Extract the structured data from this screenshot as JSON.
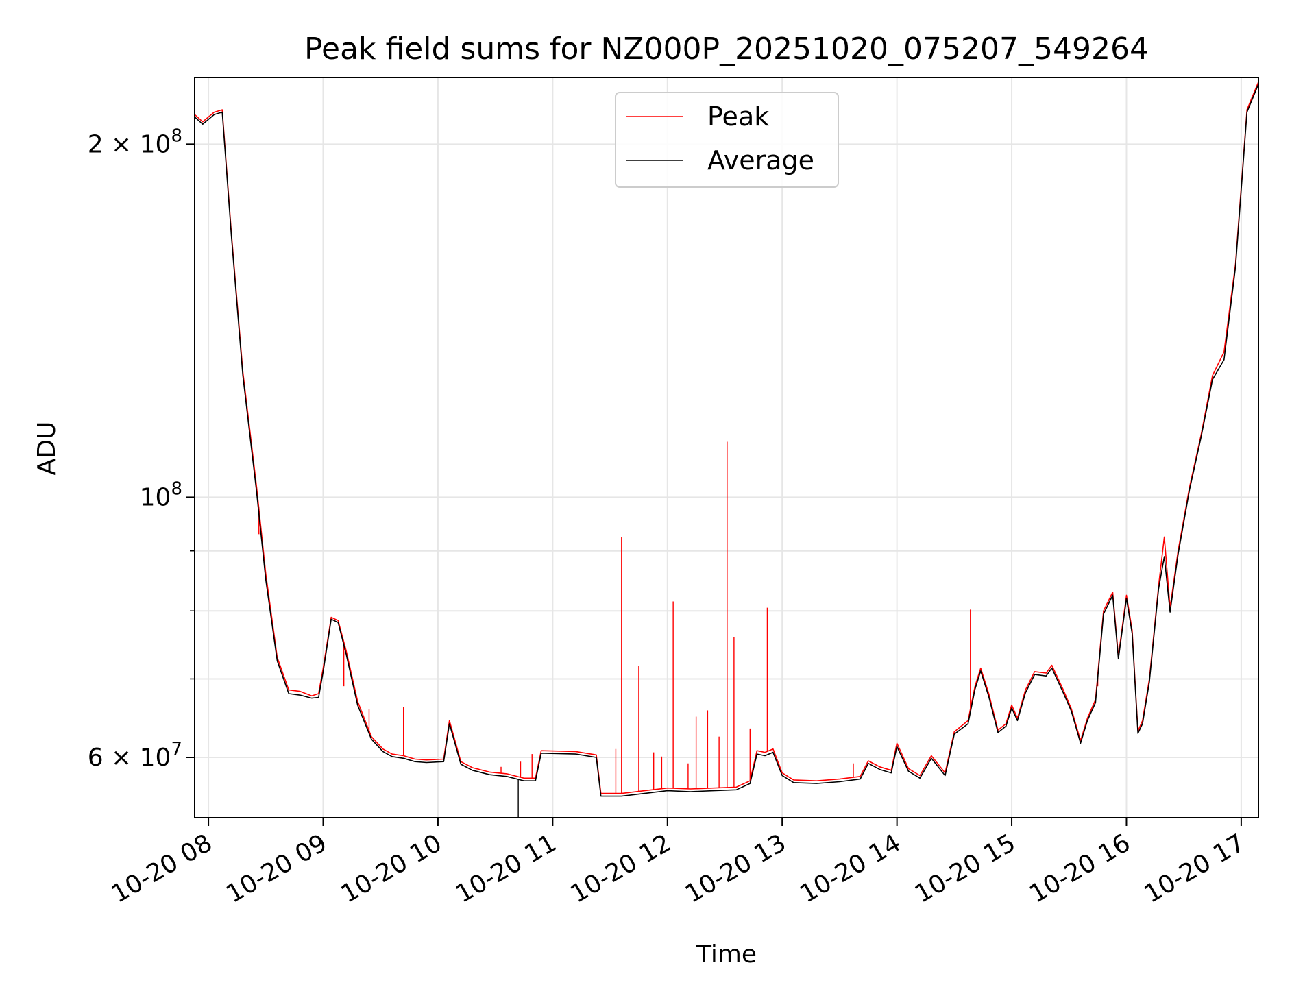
{
  "chart_data": {
    "type": "line",
    "title": "Peak field sums for NZ000P_20251020_075207_549264",
    "xlabel": "Time",
    "ylabel": "ADU",
    "yscale": "log",
    "ylim": [
      53300000,
      228000000
    ],
    "xlim_hours": [
      7.88,
      17.15
    ],
    "grid": true,
    "legend_position": "top-center",
    "x_ticks": [
      {
        "value": 8,
        "label": "10-20 08"
      },
      {
        "value": 9,
        "label": "10-20 09"
      },
      {
        "value": 10,
        "label": "10-20 10"
      },
      {
        "value": 11,
        "label": "10-20 11"
      },
      {
        "value": 12,
        "label": "10-20 12"
      },
      {
        "value": 13,
        "label": "10-20 13"
      },
      {
        "value": 14,
        "label": "10-20 14"
      },
      {
        "value": 15,
        "label": "10-20 15"
      },
      {
        "value": 16,
        "label": "10-20 16"
      },
      {
        "value": 17,
        "label": "10-20 17"
      }
    ],
    "y_ticks": [
      {
        "value": 200000000,
        "mantissa": "2",
        "exponent": "8"
      },
      {
        "value": 100000000,
        "mantissa": "",
        "exponent": "8"
      },
      {
        "value": 60000000,
        "mantissa": "6",
        "exponent": "7"
      }
    ],
    "y_minor_ticks": [
      70000000,
      80000000,
      90000000
    ],
    "series": [
      {
        "name": "Peak",
        "color": "#ff0000",
        "points": [
          [
            7.88,
            212000000
          ],
          [
            7.95,
            209000000
          ],
          [
            8.05,
            213000000
          ],
          [
            8.12,
            214000000
          ],
          [
            8.2,
            168000000
          ],
          [
            8.3,
            128000000
          ],
          [
            8.42,
            102000000
          ],
          [
            8.5,
            86000000
          ],
          [
            8.6,
            73000000
          ],
          [
            8.7,
            68500000
          ],
          [
            8.8,
            68300000
          ],
          [
            8.9,
            67700000
          ],
          [
            8.96,
            68000000
          ],
          [
            9.0,
            71500000
          ],
          [
            9.07,
            79000000
          ],
          [
            9.13,
            78500000
          ],
          [
            9.2,
            74000000
          ],
          [
            9.3,
            67000000
          ],
          [
            9.42,
            62500000
          ],
          [
            9.52,
            61000000
          ],
          [
            9.6,
            60400000
          ],
          [
            9.7,
            60200000
          ],
          [
            9.8,
            59800000
          ],
          [
            9.9,
            59700000
          ],
          [
            10.05,
            59800000
          ],
          [
            10.1,
            64500000
          ],
          [
            10.2,
            59500000
          ],
          [
            10.3,
            58800000
          ],
          [
            10.45,
            58300000
          ],
          [
            10.6,
            58100000
          ],
          [
            10.75,
            57600000
          ],
          [
            10.85,
            57600000
          ],
          [
            10.9,
            60800000
          ],
          [
            11.2,
            60700000
          ],
          [
            11.38,
            60300000
          ],
          [
            11.42,
            55900000
          ],
          [
            11.6,
            55900000
          ],
          [
            11.8,
            56200000
          ],
          [
            12.0,
            56500000
          ],
          [
            12.2,
            56400000
          ],
          [
            12.4,
            56500000
          ],
          [
            12.6,
            56600000
          ],
          [
            12.72,
            57300000
          ],
          [
            12.78,
            60800000
          ],
          [
            12.85,
            60600000
          ],
          [
            12.92,
            61000000
          ],
          [
            13.0,
            58200000
          ],
          [
            13.1,
            57400000
          ],
          [
            13.3,
            57300000
          ],
          [
            13.5,
            57500000
          ],
          [
            13.68,
            57800000
          ],
          [
            13.75,
            59600000
          ],
          [
            13.85,
            58900000
          ],
          [
            13.95,
            58500000
          ],
          [
            14.0,
            61700000
          ],
          [
            14.1,
            58700000
          ],
          [
            14.2,
            57900000
          ],
          [
            14.3,
            60200000
          ],
          [
            14.42,
            58200000
          ],
          [
            14.5,
            63100000
          ],
          [
            14.62,
            64500000
          ],
          [
            14.68,
            69000000
          ],
          [
            14.73,
            71500000
          ],
          [
            14.8,
            68000000
          ],
          [
            14.88,
            63300000
          ],
          [
            14.95,
            64100000
          ],
          [
            15.0,
            66500000
          ],
          [
            15.05,
            64800000
          ],
          [
            15.12,
            68500000
          ],
          [
            15.2,
            71000000
          ],
          [
            15.3,
            70800000
          ],
          [
            15.35,
            71900000
          ],
          [
            15.45,
            68500000
          ],
          [
            15.52,
            66000000
          ],
          [
            15.6,
            62000000
          ],
          [
            15.66,
            64800000
          ],
          [
            15.73,
            67200000
          ],
          [
            15.8,
            80000000
          ],
          [
            15.88,
            83000000
          ],
          [
            15.93,
            73200000
          ],
          [
            16.0,
            82500000
          ],
          [
            16.05,
            77000000
          ],
          [
            16.1,
            63200000
          ],
          [
            16.14,
            64500000
          ],
          [
            16.2,
            70000000
          ],
          [
            16.28,
            84000000
          ],
          [
            16.33,
            92500000
          ],
          [
            16.38,
            80500000
          ],
          [
            16.45,
            90000000
          ],
          [
            16.55,
            102000000
          ],
          [
            16.65,
            113000000
          ],
          [
            16.75,
            127000000
          ],
          [
            16.85,
            133000000
          ],
          [
            16.95,
            158000000
          ],
          [
            17.05,
            214000000
          ],
          [
            17.15,
            226000000
          ]
        ],
        "spikes": [
          [
            8.44,
            93000000
          ],
          [
            9.18,
            69000000
          ],
          [
            9.4,
            66000000
          ],
          [
            9.7,
            66200000
          ],
          [
            10.35,
            58800000
          ],
          [
            10.55,
            58900000
          ],
          [
            10.72,
            59500000
          ],
          [
            10.82,
            60400000
          ],
          [
            11.55,
            61000000
          ],
          [
            11.6,
            92500000
          ],
          [
            11.75,
            71800000
          ],
          [
            11.88,
            60600000
          ],
          [
            11.95,
            60100000
          ],
          [
            12.05,
            81500000
          ],
          [
            12.18,
            59300000
          ],
          [
            12.25,
            65000000
          ],
          [
            12.35,
            65800000
          ],
          [
            12.45,
            62500000
          ],
          [
            12.52,
            111500000
          ],
          [
            12.58,
            76000000
          ],
          [
            12.72,
            63500000
          ],
          [
            12.87,
            80500000
          ],
          [
            13.62,
            59300000
          ],
          [
            14.64,
            80200000
          ],
          [
            15.75,
            69000000
          ]
        ]
      },
      {
        "name": "Average",
        "color": "#000000",
        "points": [
          [
            7.88,
            211000000
          ],
          [
            7.95,
            208000000
          ],
          [
            8.05,
            212000000
          ],
          [
            8.12,
            213000000
          ],
          [
            8.2,
            167000000
          ],
          [
            8.3,
            127000000
          ],
          [
            8.42,
            101000000
          ],
          [
            8.5,
            85000000
          ],
          [
            8.6,
            72500000
          ],
          [
            8.7,
            68000000
          ],
          [
            8.8,
            67800000
          ],
          [
            8.9,
            67400000
          ],
          [
            8.96,
            67500000
          ],
          [
            9.0,
            71000000
          ],
          [
            9.07,
            78700000
          ],
          [
            9.13,
            78200000
          ],
          [
            9.2,
            73500000
          ],
          [
            9.3,
            66500000
          ],
          [
            9.42,
            62200000
          ],
          [
            9.52,
            60700000
          ],
          [
            9.6,
            60100000
          ],
          [
            9.7,
            59900000
          ],
          [
            9.8,
            59500000
          ],
          [
            9.9,
            59400000
          ],
          [
            10.05,
            59500000
          ],
          [
            10.1,
            64100000
          ],
          [
            10.2,
            59200000
          ],
          [
            10.3,
            58500000
          ],
          [
            10.45,
            58000000
          ],
          [
            10.6,
            57800000
          ],
          [
            10.75,
            57300000
          ],
          [
            10.85,
            57300000
          ],
          [
            10.9,
            60500000
          ],
          [
            11.2,
            60400000
          ],
          [
            11.38,
            60000000
          ],
          [
            11.42,
            55600000
          ],
          [
            11.6,
            55600000
          ],
          [
            11.8,
            55900000
          ],
          [
            12.0,
            56200000
          ],
          [
            12.2,
            56100000
          ],
          [
            12.4,
            56200000
          ],
          [
            12.6,
            56300000
          ],
          [
            12.72,
            57000000
          ],
          [
            12.78,
            60400000
          ],
          [
            12.85,
            60200000
          ],
          [
            12.92,
            60600000
          ],
          [
            13.0,
            57900000
          ],
          [
            13.1,
            57100000
          ],
          [
            13.3,
            57000000
          ],
          [
            13.5,
            57200000
          ],
          [
            13.68,
            57500000
          ],
          [
            13.75,
            59300000
          ],
          [
            13.85,
            58600000
          ],
          [
            13.95,
            58200000
          ],
          [
            14.0,
            61300000
          ],
          [
            14.1,
            58400000
          ],
          [
            14.2,
            57600000
          ],
          [
            14.3,
            59900000
          ],
          [
            14.42,
            57900000
          ],
          [
            14.5,
            62800000
          ],
          [
            14.62,
            64100000
          ],
          [
            14.68,
            68600000
          ],
          [
            14.73,
            71100000
          ],
          [
            14.8,
            67600000
          ],
          [
            14.88,
            63000000
          ],
          [
            14.95,
            63800000
          ],
          [
            15.0,
            66100000
          ],
          [
            15.05,
            64500000
          ],
          [
            15.12,
            68100000
          ],
          [
            15.2,
            70600000
          ],
          [
            15.3,
            70400000
          ],
          [
            15.35,
            71500000
          ],
          [
            15.45,
            68100000
          ],
          [
            15.52,
            65700000
          ],
          [
            15.6,
            61700000
          ],
          [
            15.66,
            64500000
          ],
          [
            15.73,
            66800000
          ],
          [
            15.8,
            79500000
          ],
          [
            15.88,
            82500000
          ],
          [
            15.93,
            72800000
          ],
          [
            16.0,
            82000000
          ],
          [
            16.05,
            76500000
          ],
          [
            16.1,
            62900000
          ],
          [
            16.14,
            64100000
          ],
          [
            16.2,
            69600000
          ],
          [
            16.28,
            83500000
          ],
          [
            16.33,
            89000000
          ],
          [
            16.38,
            79800000
          ],
          [
            16.45,
            89400000
          ],
          [
            16.55,
            101500000
          ],
          [
            16.65,
            112500000
          ],
          [
            16.75,
            126000000
          ],
          [
            16.85,
            131000000
          ],
          [
            16.95,
            157000000
          ],
          [
            17.05,
            213000000
          ],
          [
            17.15,
            225000000
          ]
        ],
        "spikes": [
          [
            10.7,
            53300000
          ]
        ]
      }
    ]
  }
}
